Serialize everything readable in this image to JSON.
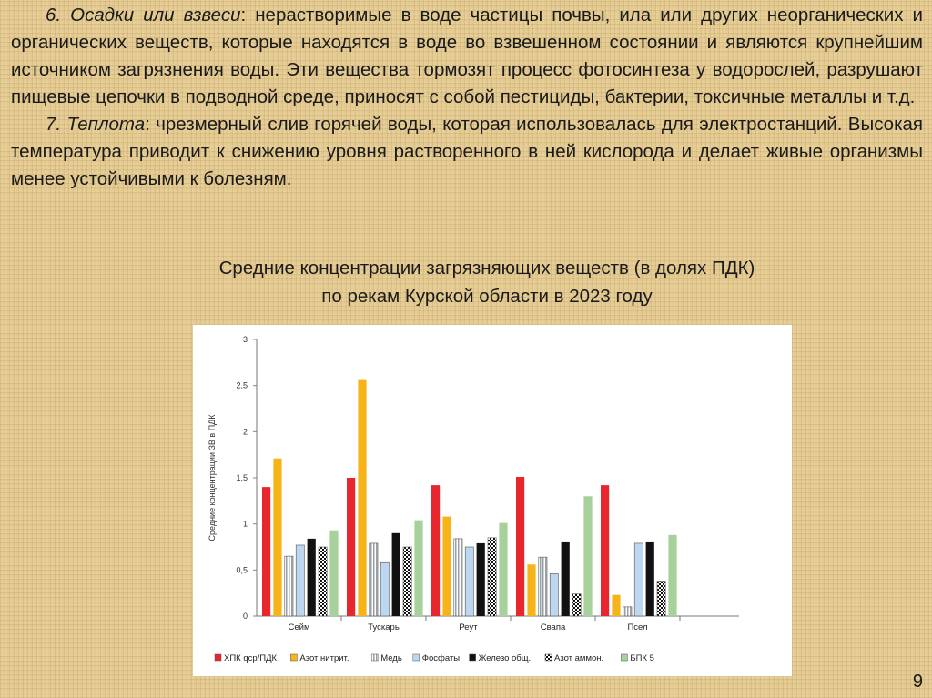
{
  "paragraphs": [
    {
      "lead": "6. Осадки или взвеси",
      "body": ": нерастворимые в воде частицы почвы, ила или других неорганических и органических веществ, которые находятся в воде во взвешенном состоянии и являются крупнейшим источником загрязнения воды. Эти вещества тормозят процесс фотосинтеза у водорослей, разрушают пищевые цепочки в подводной среде, приносят с собой пестициды, бактерии, токсичные металлы и т.д."
    },
    {
      "lead": "7. Теплота",
      "body": ": чрезмерный слив горячей воды, которая использовалась для электростанций. Высокая температура приводит к снижению уровня растворенного в ней кислорода и делает живые организмы менее устойчивыми к болезням."
    }
  ],
  "caption": {
    "line1": "Средние концентрации загрязняющих веществ (в долях ПДК)",
    "line2": "по рекам Курской области в 2023 году"
  },
  "slide_number": "9",
  "chart_data": {
    "type": "bar",
    "ylabel": "Средние концентрации ЗВ в ПДК",
    "ylim": [
      0,
      3
    ],
    "yticks": [
      "0",
      "0,5",
      "1",
      "1,5",
      "2",
      "2,5",
      "3"
    ],
    "categories": [
      "Сейм",
      "Тускарь",
      "Реут",
      "Свапа",
      "Псел"
    ],
    "legend_position": "bottom",
    "series": [
      {
        "name": "ХПК qcp/ПДК",
        "color": "#e8262d",
        "pattern": "solid",
        "values": [
          1.4,
          1.5,
          1.42,
          1.51,
          1.42
        ]
      },
      {
        "name": "Азот нитрит.",
        "color": "#f7b419",
        "pattern": "solid",
        "values": [
          1.71,
          2.56,
          1.08,
          0.56,
          0.23
        ]
      },
      {
        "name": "Медь",
        "color": "#b9bcc2",
        "pattern": "hatch",
        "values": [
          0.65,
          0.79,
          0.84,
          0.64,
          0.1
        ]
      },
      {
        "name": "Фосфаты",
        "color": "#bcd7ef",
        "pattern": "solid",
        "values": [
          0.77,
          0.58,
          0.75,
          0.46,
          0.79
        ]
      },
      {
        "name": "Железо общ.",
        "color": "#111111",
        "pattern": "solid",
        "values": [
          0.84,
          0.9,
          0.79,
          0.8,
          0.8
        ]
      },
      {
        "name": "Азот аммон.",
        "color": "#222222",
        "pattern": "check",
        "values": [
          0.75,
          0.75,
          0.85,
          0.24,
          0.38
        ]
      },
      {
        "name": "БПК 5",
        "color": "#a6d19a",
        "pattern": "solid",
        "values": [
          0.93,
          1.04,
          1.01,
          1.3,
          0.88
        ]
      }
    ]
  }
}
